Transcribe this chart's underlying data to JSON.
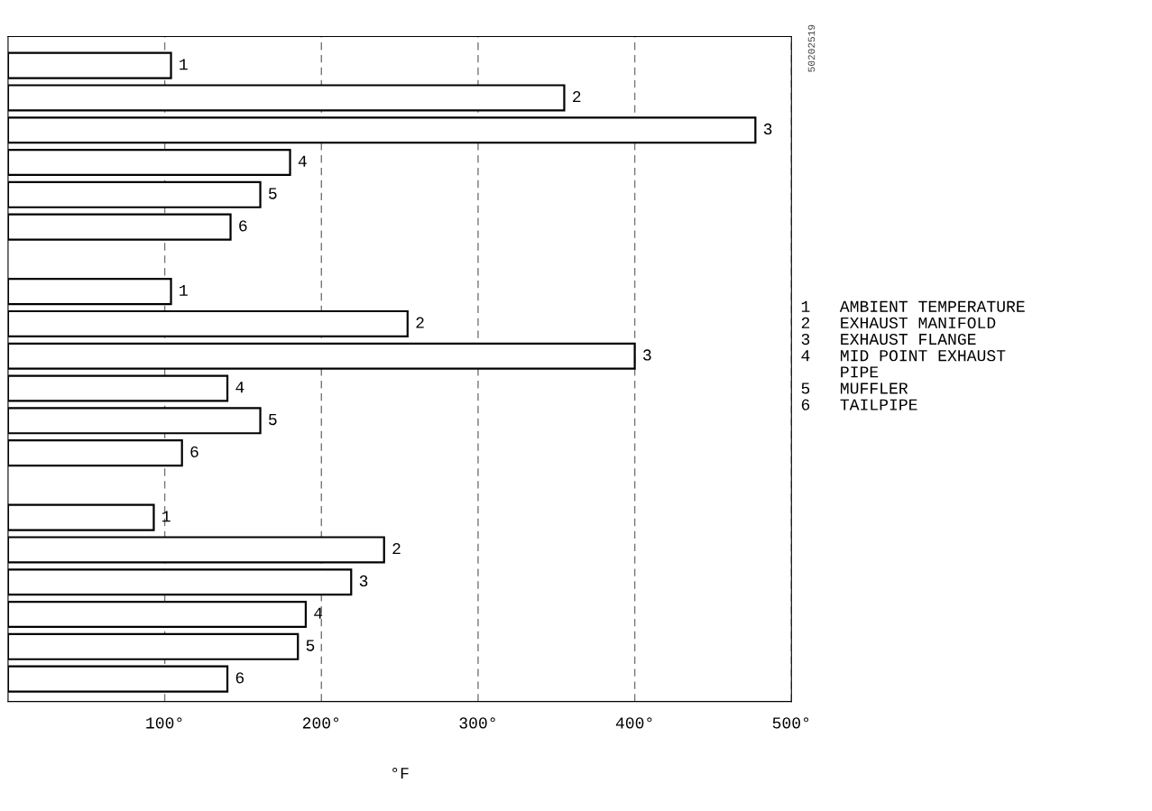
{
  "chart_data": {
    "type": "bar",
    "orientation": "horizontal",
    "xlabel": "°F",
    "categories": [
      null,
      null,
      null,
      null,
      null,
      null,
      null,
      null,
      null,
      null,
      null,
      null,
      null,
      null,
      null,
      null,
      null,
      null,
      null,
      null
    ],
    "values": [
      104,
      355,
      477,
      180,
      161,
      142,
      null,
      104,
      255,
      400,
      140,
      161,
      111,
      null,
      93,
      240,
      219,
      190,
      185,
      140
    ],
    "color": "#ffffff",
    "xlim": [
      0,
      500
    ],
    "xticks": [
      {
        "value": 100,
        "label": "100°"
      },
      {
        "value": 200,
        "label": "200°"
      },
      {
        "value": 300,
        "label": "300°"
      },
      {
        "value": 400,
        "label": "400°"
      },
      {
        "value": 500,
        "label": "500°"
      }
    ],
    "grid": "x",
    "annotations": [
      "1",
      "2",
      "3",
      "4",
      "5",
      "6",
      "1",
      "2",
      "3",
      "4",
      "5",
      "6",
      "1",
      "2",
      "3",
      "4",
      "5",
      "6",
      "1   AMBIENT TEMPERATURE\n2   EXHAUST MANIFOLD\n3   EXHAUST FLANGE\n4   MID POINT EXHAUST\n    PIPE\n5   MUFFLER\n6   TAILPIPE",
      "50202519"
    ]
  }
}
